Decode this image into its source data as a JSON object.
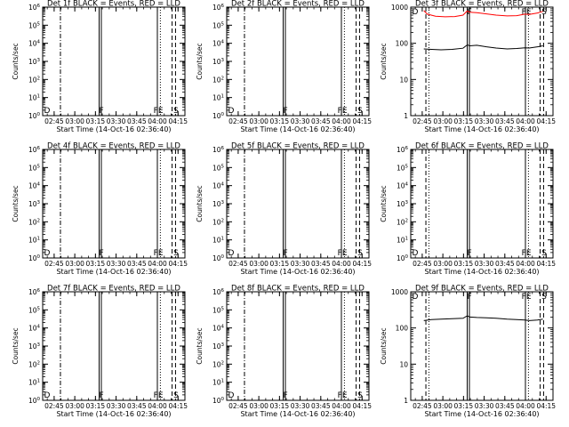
{
  "ylabel": "Counts/sec",
  "xlabel": "Start Time (14-Oct-16 02:36:40)",
  "time_ticks": [
    "02:45",
    "03:00",
    "03:15",
    "03:30",
    "03:45",
    "04:00",
    "04:15"
  ],
  "time_tick_minutes": [
    8.33,
    23.33,
    38.33,
    53.33,
    68.33,
    83.33,
    98.33
  ],
  "x_range_minutes": [
    0,
    103.33
  ],
  "colors": {
    "events": "#000000",
    "lld": "#ff0000",
    "axes": "#000000"
  },
  "chart_data": [
    {
      "type": "line",
      "title": "Det 1f BLACK = Events, RED = LLD",
      "scale": "log",
      "ylim_exp": [
        0,
        6
      ],
      "ytick_labels": [
        "10^0",
        "10^1",
        "10^2",
        "10^3",
        "10^4",
        "10^5",
        "10^6"
      ],
      "events": [],
      "lld": [],
      "markers": [
        {
          "type": "dashdot",
          "minute": 12.9
        },
        {
          "type": "solid",
          "minute": 41.0
        },
        {
          "type": "solid",
          "minute": 42.6
        },
        {
          "type": "solid",
          "minute": 83.3
        },
        {
          "type": "dotted",
          "minute": 85.5
        },
        {
          "type": "dashed",
          "minute": 94.0
        },
        {
          "type": "dashed",
          "minute": 96.5
        }
      ],
      "letters": [
        {
          "text": "D",
          "minute": 1.0
        },
        {
          "text": "F",
          "minute": 41.0
        },
        {
          "text": "FE",
          "minute": 80.5
        },
        {
          "text": "S",
          "minute": 95.0
        }
      ]
    },
    {
      "type": "line",
      "title": "Det 2f BLACK = Events, RED = LLD",
      "scale": "log",
      "ylim_exp": [
        0,
        6
      ],
      "ytick_labels": [
        "10^0",
        "10^1",
        "10^2",
        "10^3",
        "10^4",
        "10^5",
        "10^6"
      ],
      "events": [],
      "lld": [],
      "markers": [
        {
          "type": "dashdot",
          "minute": 12.9
        },
        {
          "type": "solid",
          "minute": 41.0
        },
        {
          "type": "solid",
          "minute": 42.6
        },
        {
          "type": "solid",
          "minute": 83.3
        },
        {
          "type": "dotted",
          "minute": 85.5
        },
        {
          "type": "dashed",
          "minute": 94.0
        },
        {
          "type": "dashed",
          "minute": 96.5
        }
      ],
      "letters": [
        {
          "text": "D",
          "minute": 1.0
        },
        {
          "text": "F",
          "minute": 41.0
        },
        {
          "text": "FE",
          "minute": 80.5
        },
        {
          "text": "S",
          "minute": 95.0
        }
      ]
    },
    {
      "type": "line",
      "title": "Det 3f BLACK = Events, RED = LLD",
      "scale": "log",
      "ylim_exp": [
        0,
        3
      ],
      "ytick_labels": [
        "1",
        "10",
        "100",
        "1000"
      ],
      "events": [
        [
          9.5,
          70
        ],
        [
          15,
          68
        ],
        [
          22,
          66
        ],
        [
          30,
          68
        ],
        [
          38,
          73
        ],
        [
          41,
          90
        ],
        [
          43,
          85
        ],
        [
          48,
          88
        ],
        [
          55,
          80
        ],
        [
          62,
          74
        ],
        [
          70,
          70
        ],
        [
          77,
          72
        ],
        [
          83,
          75
        ],
        [
          86,
          74
        ],
        [
          92,
          80
        ],
        [
          96,
          85
        ]
      ],
      "lld": [
        [
          9.5,
          800
        ],
        [
          12,
          640
        ],
        [
          18,
          560
        ],
        [
          25,
          540
        ],
        [
          32,
          550
        ],
        [
          38,
          600
        ],
        [
          41,
          780
        ],
        [
          43,
          720
        ],
        [
          48,
          700
        ],
        [
          55,
          650
        ],
        [
          62,
          600
        ],
        [
          70,
          570
        ],
        [
          77,
          580
        ],
        [
          83,
          640
        ],
        [
          86,
          630
        ],
        [
          92,
          690
        ],
        [
          96,
          760
        ]
      ],
      "markers": [
        {
          "type": "dashed",
          "minute": 11.0
        },
        {
          "type": "dotted",
          "minute": 13.2
        },
        {
          "type": "solid",
          "minute": 41.0
        },
        {
          "type": "solid",
          "minute": 42.6
        },
        {
          "type": "solid",
          "minute": 83.3
        },
        {
          "type": "dotted",
          "minute": 85.5
        },
        {
          "type": "dashed",
          "minute": 94.0
        },
        {
          "type": "dashed",
          "minute": 96.5
        }
      ],
      "letters": [
        {
          "text": "D",
          "minute": 1.0
        },
        {
          "text": "F",
          "minute": 41.0
        },
        {
          "text": "FE",
          "minute": 80.5
        },
        {
          "text": "S",
          "minute": 95.0
        }
      ]
    },
    {
      "type": "line",
      "title": "Det 4f BLACK = Events, RED = LLD",
      "scale": "log",
      "ylim_exp": [
        0,
        6
      ],
      "ytick_labels": [
        "10^0",
        "10^1",
        "10^2",
        "10^3",
        "10^4",
        "10^5",
        "10^6"
      ],
      "events": [],
      "lld": [],
      "markers": [
        {
          "type": "dashdot",
          "minute": 12.9
        },
        {
          "type": "solid",
          "minute": 41.0
        },
        {
          "type": "solid",
          "minute": 42.6
        },
        {
          "type": "solid",
          "minute": 83.3
        },
        {
          "type": "dotted",
          "minute": 85.5
        },
        {
          "type": "dashed",
          "minute": 94.0
        },
        {
          "type": "dashed",
          "minute": 96.5
        }
      ],
      "letters": [
        {
          "text": "D",
          "minute": 1.0
        },
        {
          "text": "F",
          "minute": 41.0
        },
        {
          "text": "FE",
          "minute": 80.5
        },
        {
          "text": "S",
          "minute": 95.0
        }
      ]
    },
    {
      "type": "line",
      "title": "Det 5f BLACK = Events, RED = LLD",
      "scale": "log",
      "ylim_exp": [
        0,
        6
      ],
      "ytick_labels": [
        "10^0",
        "10^1",
        "10^2",
        "10^3",
        "10^4",
        "10^5",
        "10^6"
      ],
      "events": [],
      "lld": [],
      "markers": [
        {
          "type": "dashdot",
          "minute": 12.9
        },
        {
          "type": "solid",
          "minute": 41.0
        },
        {
          "type": "solid",
          "minute": 42.6
        },
        {
          "type": "solid",
          "minute": 83.3
        },
        {
          "type": "dotted",
          "minute": 85.5
        },
        {
          "type": "dashed",
          "minute": 94.0
        },
        {
          "type": "dashed",
          "minute": 96.5
        }
      ],
      "letters": [
        {
          "text": "D",
          "minute": 1.0
        },
        {
          "text": "F",
          "minute": 41.0
        },
        {
          "text": "FE",
          "minute": 80.5
        },
        {
          "text": "S",
          "minute": 95.0
        }
      ]
    },
    {
      "type": "line",
      "title": "Det 6f BLACK = Events, RED = LLD",
      "scale": "log",
      "ylim_exp": [
        0,
        6
      ],
      "ytick_labels": [
        "10^0",
        "10^1",
        "10^2",
        "10^3",
        "10^4",
        "10^5",
        "10^6"
      ],
      "events": [],
      "lld": [],
      "markers": [
        {
          "type": "dashed",
          "minute": 11.0
        },
        {
          "type": "dotted",
          "minute": 13.2
        },
        {
          "type": "solid",
          "minute": 41.0
        },
        {
          "type": "solid",
          "minute": 42.6
        },
        {
          "type": "solid",
          "minute": 83.3
        },
        {
          "type": "dotted",
          "minute": 85.5
        },
        {
          "type": "dashed",
          "minute": 94.0
        },
        {
          "type": "dashed",
          "minute": 96.5
        }
      ],
      "letters": [
        {
          "text": "D",
          "minute": 1.0
        },
        {
          "text": "F",
          "minute": 41.0
        },
        {
          "text": "FE",
          "minute": 80.5
        },
        {
          "text": "S",
          "minute": 95.0
        }
      ]
    },
    {
      "type": "line",
      "title": "Det 7f BLACK = Events, RED = LLD",
      "scale": "log",
      "ylim_exp": [
        0,
        6
      ],
      "ytick_labels": [
        "10^0",
        "10^1",
        "10^2",
        "10^3",
        "10^4",
        "10^5",
        "10^6"
      ],
      "events": [],
      "lld": [],
      "markers": [
        {
          "type": "dashdot",
          "minute": 12.9
        },
        {
          "type": "solid",
          "minute": 41.0
        },
        {
          "type": "solid",
          "minute": 42.6
        },
        {
          "type": "solid",
          "minute": 83.3
        },
        {
          "type": "dotted",
          "minute": 85.5
        },
        {
          "type": "dashed",
          "minute": 94.0
        },
        {
          "type": "dashed",
          "minute": 96.5
        }
      ],
      "letters": [
        {
          "text": "D",
          "minute": 1.0
        },
        {
          "text": "F",
          "minute": 41.0
        },
        {
          "text": "FE",
          "minute": 80.5
        },
        {
          "text": "S",
          "minute": 95.0
        }
      ]
    },
    {
      "type": "line",
      "title": "Det 8f BLACK = Events, RED = LLD",
      "scale": "log",
      "ylim_exp": [
        0,
        6
      ],
      "ytick_labels": [
        "10^0",
        "10^1",
        "10^2",
        "10^3",
        "10^4",
        "10^5",
        "10^6"
      ],
      "events": [],
      "lld": [],
      "markers": [
        {
          "type": "dashdot",
          "minute": 12.9
        },
        {
          "type": "solid",
          "minute": 41.0
        },
        {
          "type": "solid",
          "minute": 42.6
        },
        {
          "type": "solid",
          "minute": 83.3
        },
        {
          "type": "dotted",
          "minute": 85.5
        },
        {
          "type": "dashed",
          "minute": 94.0
        },
        {
          "type": "dashed",
          "minute": 96.5
        }
      ],
      "letters": [
        {
          "text": "D",
          "minute": 1.0
        },
        {
          "text": "F",
          "minute": 41.0
        },
        {
          "text": "FE",
          "minute": 80.5
        },
        {
          "text": "S",
          "minute": 95.0
        }
      ]
    },
    {
      "type": "line",
      "title": "Det 9f BLACK = Events, RED = LLD",
      "scale": "log",
      "ylim_exp": [
        0,
        3
      ],
      "ytick_labels": [
        "1",
        "10",
        "100",
        "1000"
      ],
      "events": [
        [
          9.5,
          160
        ],
        [
          15,
          170
        ],
        [
          22,
          175
        ],
        [
          30,
          180
        ],
        [
          38,
          185
        ],
        [
          41,
          215
        ],
        [
          43,
          200
        ],
        [
          48,
          195
        ],
        [
          55,
          190
        ],
        [
          62,
          185
        ],
        [
          70,
          175
        ],
        [
          77,
          170
        ],
        [
          83,
          165
        ],
        [
          86,
          160
        ],
        [
          92,
          165
        ],
        [
          96,
          175
        ]
      ],
      "lld": [],
      "markers": [
        {
          "type": "dashed",
          "minute": 11.0
        },
        {
          "type": "dotted",
          "minute": 13.2
        },
        {
          "type": "solid",
          "minute": 41.0
        },
        {
          "type": "solid",
          "minute": 42.6
        },
        {
          "type": "solid",
          "minute": 83.3
        },
        {
          "type": "dotted",
          "minute": 85.5
        },
        {
          "type": "dashed",
          "minute": 94.0
        },
        {
          "type": "dashed",
          "minute": 96.5
        }
      ],
      "letters": [
        {
          "text": "D",
          "minute": 1.0
        },
        {
          "text": "F",
          "minute": 41.0
        },
        {
          "text": "FE",
          "minute": 80.5
        },
        {
          "text": "S",
          "minute": 95.0
        }
      ]
    }
  ]
}
